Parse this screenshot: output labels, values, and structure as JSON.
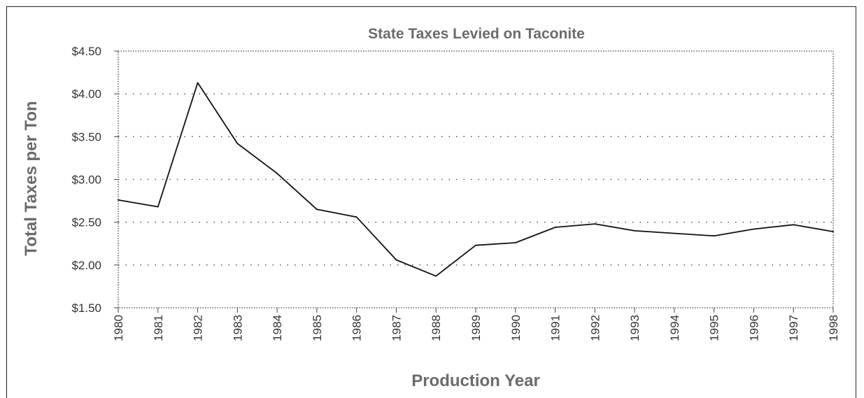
{
  "chart_data": {
    "type": "line",
    "title": "State Taxes Levied on Taconite",
    "xlabel": "Production Year",
    "ylabel": "Total Taxes per Ton",
    "x": [
      "1980",
      "1981",
      "1982",
      "1983",
      "1984",
      "1985",
      "1986",
      "1987",
      "1988",
      "1989",
      "1990",
      "1991",
      "1992",
      "1993",
      "1994",
      "1995",
      "1996",
      "1997",
      "1998"
    ],
    "series": [
      {
        "values": [
          2.76,
          2.68,
          4.13,
          3.42,
          3.07,
          2.65,
          2.56,
          2.06,
          1.87,
          2.23,
          2.26,
          2.44,
          2.48,
          2.4,
          2.37,
          2.34,
          2.42,
          2.47,
          2.39
        ]
      }
    ],
    "yticks": [
      "$1.50",
      "$2.00",
      "$2.50",
      "$3.00",
      "$3.50",
      "$4.00",
      "$4.50"
    ],
    "ylim": [
      1.5,
      4.5
    ],
    "grid": true,
    "colors": {
      "line": "#111111",
      "grid": "#444444",
      "title": "#6b6b6b"
    }
  }
}
